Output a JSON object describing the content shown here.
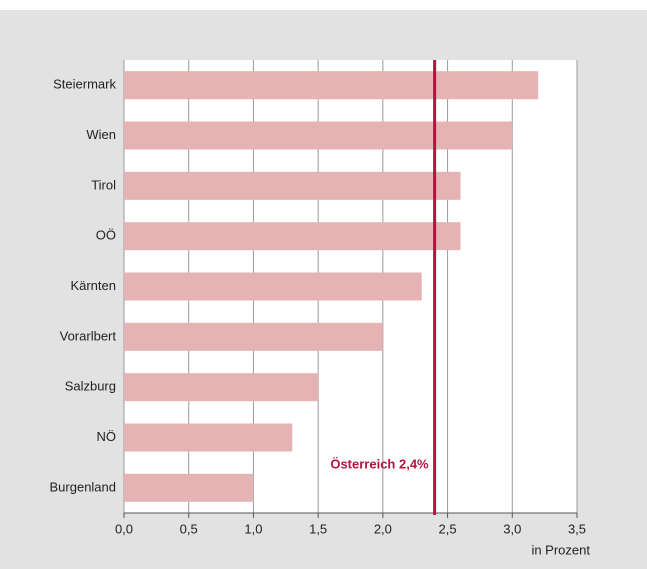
{
  "chart_data": {
    "type": "barh",
    "categories": [
      "Steiermark",
      "Wien",
      "Tirol",
      "OÖ",
      "Kärnten",
      "Vorarlbert",
      "Salzburg",
      "NÖ",
      "Burgenland"
    ],
    "values": [
      3.2,
      3.0,
      2.6,
      2.6,
      2.3,
      2.0,
      1.5,
      1.3,
      1.0
    ],
    "color": "#e5b3b3",
    "xlim": [
      0,
      3.5
    ],
    "xticks": [
      {
        "value": 0,
        "label": "0,0"
      },
      {
        "value": 0.5,
        "label": "0,5"
      },
      {
        "value": 1,
        "label": "1,0"
      },
      {
        "value": 1.5,
        "label": "1,5"
      },
      {
        "value": 2,
        "label": "2,0"
      },
      {
        "value": 2.5,
        "label": "2,5"
      },
      {
        "value": 3,
        "label": "3,0"
      },
      {
        "value": 3.5,
        "label": "3,5"
      }
    ],
    "xlabel": "in Prozent",
    "grid": true,
    "reference": {
      "value": 2.4,
      "label": "Österreich 2,4%",
      "color": "#b5123f"
    }
  }
}
